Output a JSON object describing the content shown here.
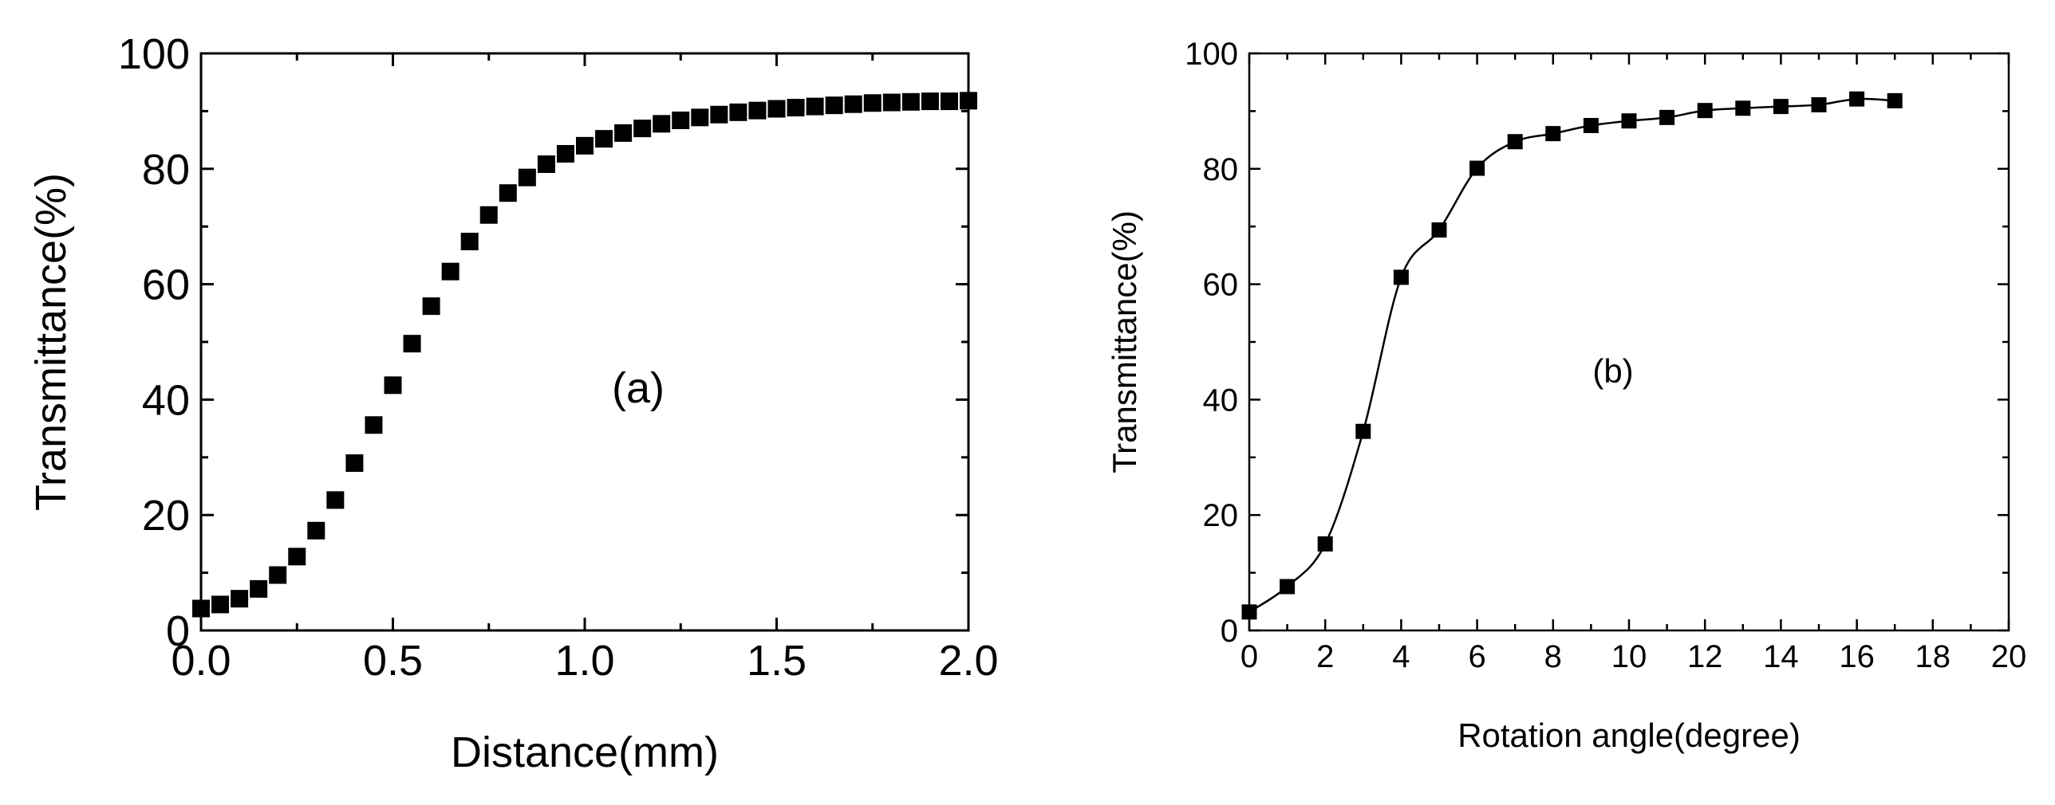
{
  "chart_data": [
    {
      "type": "scatter",
      "panel_label": "(a)",
      "xlabel": "Distance(mm)",
      "ylabel": "Transmittance(%)",
      "xlim": [
        0,
        2.0
      ],
      "ylim": [
        0,
        100
      ],
      "xticks": [
        "0.0",
        "0.5",
        "1.0",
        "1.5",
        "2.0"
      ],
      "yticks": [
        "0",
        "20",
        "40",
        "60",
        "80",
        "100"
      ],
      "connect_line": false,
      "x": [
        0.0,
        0.05,
        0.1,
        0.15,
        0.2,
        0.25,
        0.3,
        0.35,
        0.4,
        0.45,
        0.5,
        0.55,
        0.6,
        0.65,
        0.7,
        0.75,
        0.8,
        0.85,
        0.9,
        0.95,
        1.0,
        1.05,
        1.1,
        1.15,
        1.2,
        1.25,
        1.3,
        1.35,
        1.4,
        1.45,
        1.5,
        1.55,
        1.6,
        1.65,
        1.7,
        1.75,
        1.8,
        1.85,
        1.9,
        1.95,
        2.0
      ],
      "y": [
        3.8,
        4.5,
        5.5,
        7.2,
        9.6,
        12.8,
        17.3,
        22.6,
        29.0,
        35.6,
        42.5,
        49.7,
        56.2,
        62.2,
        67.4,
        72.0,
        75.8,
        78.5,
        80.8,
        82.6,
        84.0,
        85.2,
        86.2,
        87.0,
        87.8,
        88.4,
        88.9,
        89.4,
        89.8,
        90.1,
        90.4,
        90.6,
        90.8,
        91.0,
        91.2,
        91.4,
        91.5,
        91.6,
        91.7,
        91.7,
        91.8
      ]
    },
    {
      "type": "line",
      "panel_label": "(b)",
      "xlabel": "Rotation angle(degree)",
      "ylabel": "Transmittance(%)",
      "xlim": [
        0,
        20
      ],
      "ylim": [
        0,
        100
      ],
      "xticks": [
        "0",
        "2",
        "4",
        "6",
        "8",
        "10",
        "12",
        "14",
        "16",
        "18",
        "20"
      ],
      "yticks": [
        "0",
        "20",
        "40",
        "60",
        "80",
        "100"
      ],
      "connect_line": true,
      "x": [
        0,
        1,
        2,
        3,
        4,
        5,
        6,
        7,
        8,
        9,
        10,
        11,
        12,
        13,
        14,
        15,
        16,
        17
      ],
      "y": [
        3.2,
        7.6,
        15.0,
        34.5,
        61.2,
        69.4,
        80.1,
        84.7,
        86.1,
        87.5,
        88.3,
        88.9,
        90.1,
        90.5,
        90.8,
        91.1,
        92.1,
        91.8
      ]
    }
  ]
}
